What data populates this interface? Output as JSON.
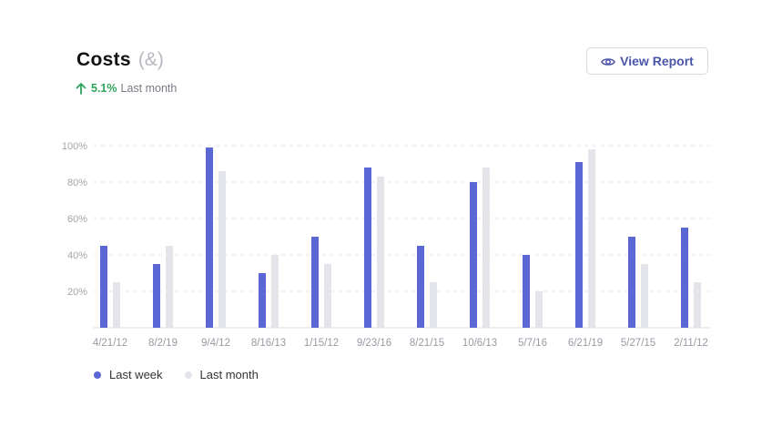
{
  "header": {
    "title": "Costs",
    "unit": "(&)",
    "delta_value": "5.1%",
    "delta_label": "Last month",
    "view_report_label": "View Report"
  },
  "icons": {
    "delta": "arrow-up-icon",
    "view_report": "eye-icon"
  },
  "colors": {
    "last_week": "#5b67d4",
    "last_month": "#e4e5ea",
    "delta_up": "#2ea35a",
    "accent_text": "#4a55a8"
  },
  "chart_data": {
    "type": "bar",
    "categories": [
      "4/21/12",
      "8/2/19",
      "9/4/12",
      "8/16/13",
      "1/15/12",
      "9/23/16",
      "8/21/15",
      "10/6/13",
      "5/7/16",
      "6/21/19",
      "5/27/15",
      "2/11/12"
    ],
    "series": [
      {
        "name": "Last week",
        "values": [
          45,
          35,
          99,
          30,
          50,
          88,
          45,
          80,
          40,
          91,
          50,
          55
        ]
      },
      {
        "name": "Last month",
        "values": [
          25,
          45,
          86,
          40,
          35,
          83,
          25,
          88,
          20,
          98,
          35,
          25
        ]
      }
    ],
    "yticks": [
      "20%",
      "40%",
      "60%",
      "80%",
      "100%"
    ],
    "ytick_values": [
      20,
      40,
      60,
      80,
      100
    ],
    "ylim": [
      0,
      100
    ],
    "grid": true,
    "legend": "bottom-left"
  }
}
